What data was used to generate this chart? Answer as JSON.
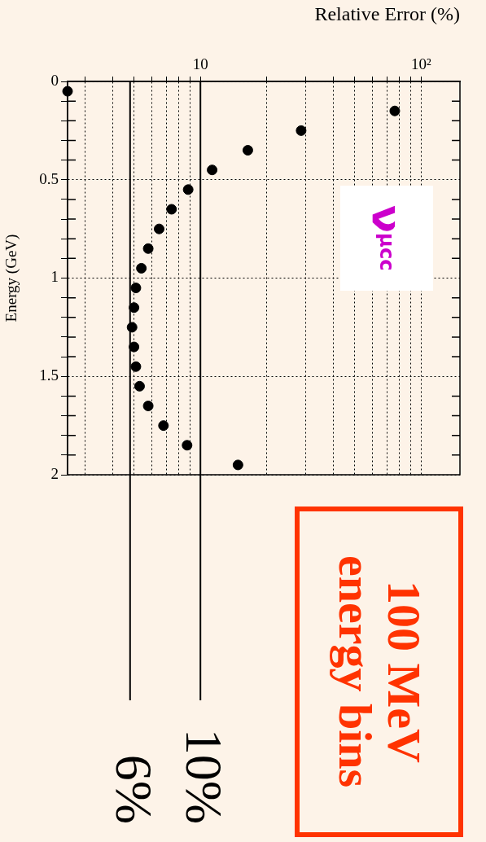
{
  "chart_data": {
    "type": "scatter",
    "xlabel": "Relative Error (%)",
    "ylabel": "Energy (GeV)",
    "x": [
      2.5,
      76,
      28.6,
      16.4,
      11.3,
      8.8,
      7.4,
      6.5,
      5.8,
      5.4,
      5.1,
      5.0,
      4.9,
      5.0,
      5.1,
      5.3,
      5.8,
      6.8,
      8.7,
      14.8
    ],
    "series": [
      {
        "color": "#000000",
        "values": [
          0.05,
          0.15,
          0.25,
          0.35,
          0.45,
          0.55,
          0.65,
          0.75,
          0.85,
          0.95,
          1.05,
          1.15,
          1.25,
          1.35,
          1.45,
          1.55,
          1.65,
          1.75,
          1.85,
          1.95
        ]
      }
    ],
    "ylim": [
      2,
      0
    ],
    "yticks": [
      0,
      {
        "value": 0.1,
        "label": null
      },
      {
        "value": 0.2,
        "label": null
      },
      {
        "value": 0.3,
        "label": null
      },
      {
        "value": 0.4,
        "label": null
      },
      0.5,
      {
        "value": 0.6,
        "label": null
      },
      {
        "value": 0.7,
        "label": null
      },
      {
        "value": 0.8,
        "label": null
      },
      {
        "value": 0.9,
        "label": null
      },
      1,
      {
        "value": 1.1,
        "label": null
      },
      {
        "value": 1.2,
        "label": null
      },
      {
        "value": 1.3,
        "label": null
      },
      {
        "value": 1.4,
        "label": null
      },
      1.5,
      {
        "value": 1.6,
        "label": null
      },
      {
        "value": 1.7,
        "label": null
      },
      {
        "value": 1.8,
        "label": null
      },
      {
        "value": 1.9,
        "label": null
      },
      2
    ],
    "xlim": [
      2.5,
      150
    ],
    "xticks": [
      {
        "value": 3,
        "label": null
      },
      {
        "value": 4,
        "label": null
      },
      {
        "value": 5,
        "label": null
      },
      {
        "value": 6,
        "label": null
      },
      {
        "value": 7,
        "label": null
      },
      {
        "value": 8,
        "label": null
      },
      {
        "value": 9,
        "label": null
      },
      10,
      {
        "value": 20,
        "label": null
      },
      {
        "value": 30,
        "label": null
      },
      {
        "value": 40,
        "label": null
      },
      {
        "value": 50,
        "label": null
      },
      {
        "value": 60,
        "label": null
      },
      {
        "value": 70,
        "label": null
      },
      {
        "value": 80,
        "label": null
      },
      {
        "value": 90,
        "label": null
      },
      {
        "value": 100,
        "label": "10²"
      }
    ],
    "log": "x",
    "grid": true,
    "legend": false,
    "marker": "circle",
    "ref_lines": [
      {
        "axis": "x",
        "value": 10,
        "label": "10%"
      },
      {
        "axis": "x",
        "value": 4.8
      }
    ],
    "annotations": [
      "100 MeV energy bins",
      "ν$_{μ}$$^{cc}$",
      "6%"
    ]
  }
}
